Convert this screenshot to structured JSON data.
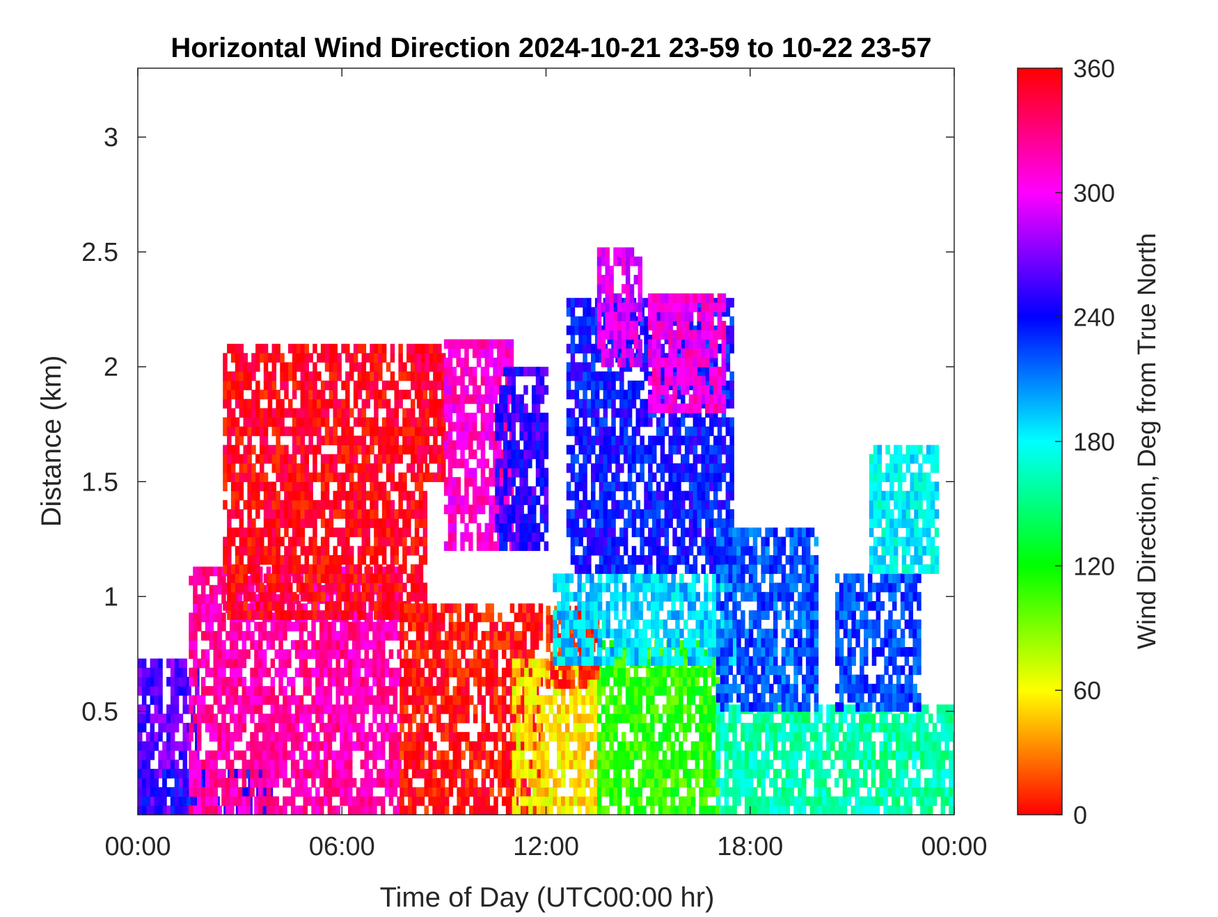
{
  "chart_data": {
    "type": "heatmap",
    "title": "Horizontal Wind Direction 2024-10-21 23-59 to 10-22 23-57",
    "xlabel": "Time of Day (UTC00:00 hr)",
    "ylabel": "Distance (km)",
    "xlim": [
      0,
      24
    ],
    "ylim": [
      0.05,
      3.3
    ],
    "x_ticks": [
      {
        "value": 0,
        "label": "00:00"
      },
      {
        "value": 6,
        "label": "06:00"
      },
      {
        "value": 12,
        "label": "12:00"
      },
      {
        "value": 18,
        "label": "18:00"
      },
      {
        "value": 24,
        "label": "00:00"
      }
    ],
    "y_ticks": [
      {
        "value": 0.5,
        "label": "0.5"
      },
      {
        "value": 1,
        "label": "1"
      },
      {
        "value": 1.5,
        "label": "1.5"
      },
      {
        "value": 2,
        "label": "2"
      },
      {
        "value": 2.5,
        "label": "2.5"
      },
      {
        "value": 3,
        "label": "3"
      }
    ],
    "colorbar": {
      "label": "Wind Direction, Deg from True North",
      "min": 0,
      "max": 360,
      "ticks": [
        {
          "value": 0,
          "label": "0"
        },
        {
          "value": 60,
          "label": "60"
        },
        {
          "value": 120,
          "label": "120"
        },
        {
          "value": 180,
          "label": "180"
        },
        {
          "value": 240,
          "label": "240"
        },
        {
          "value": 300,
          "label": "300"
        },
        {
          "value": 360,
          "label": "360"
        }
      ],
      "colormap": "hsv-reversed (red 0 → yellow 60 → green 120 → cyan 180 → blue 240 → magenta 300 → red 360)"
    },
    "grid": false,
    "regions": [
      {
        "x_range": [
          0.0,
          1.7
        ],
        "y_range": [
          0.05,
          0.7
        ],
        "direction_deg": 262
      },
      {
        "x_range": [
          0.0,
          4.0
        ],
        "y_range": [
          0.05,
          0.25
        ],
        "direction_deg": 245
      },
      {
        "x_range": [
          1.5,
          7.7
        ],
        "y_range": [
          0.05,
          1.1
        ],
        "direction_deg": 320
      },
      {
        "x_range": [
          2.5,
          8.5
        ],
        "y_range": [
          0.9,
          2.1
        ],
        "direction_deg": 355
      },
      {
        "x_range": [
          7.7,
          11.8
        ],
        "y_range": [
          0.05,
          0.95
        ],
        "direction_deg": 2
      },
      {
        "x_range": [
          8.2,
          9.0
        ],
        "y_range": [
          1.5,
          2.1
        ],
        "direction_deg": 350
      },
      {
        "x_range": [
          9.0,
          11.0
        ],
        "y_range": [
          1.2,
          2.1
        ],
        "direction_deg": 310
      },
      {
        "x_range": [
          10.5,
          12.0
        ],
        "y_range": [
          1.2,
          2.0
        ],
        "direction_deg": 250
      },
      {
        "x_range": [
          11.0,
          13.5
        ],
        "y_range": [
          0.05,
          0.7
        ],
        "direction_deg": 55
      },
      {
        "x_range": [
          13.5,
          17.0
        ],
        "y_range": [
          0.05,
          0.8
        ],
        "direction_deg": 110
      },
      {
        "x_range": [
          12.0,
          13.5
        ],
        "y_range": [
          0.6,
          0.95
        ],
        "direction_deg": 10
      },
      {
        "x_range": [
          12.2,
          17.5
        ],
        "y_range": [
          0.7,
          1.1
        ],
        "direction_deg": 190
      },
      {
        "x_range": [
          12.6,
          17.5
        ],
        "y_range": [
          1.1,
          2.3
        ],
        "direction_deg": 238
      },
      {
        "x_range": [
          13.5,
          14.8
        ],
        "y_range": [
          2.0,
          2.5
        ],
        "direction_deg": 295
      },
      {
        "x_range": [
          15.0,
          17.2
        ],
        "y_range": [
          1.8,
          2.3
        ],
        "direction_deg": 305
      },
      {
        "x_range": [
          17.0,
          24.0
        ],
        "y_range": [
          0.05,
          0.5
        ],
        "direction_deg": 160
      },
      {
        "x_range": [
          17.0,
          20.0
        ],
        "y_range": [
          0.5,
          1.3
        ],
        "direction_deg": 220
      },
      {
        "x_range": [
          20.5,
          23.0
        ],
        "y_range": [
          0.5,
          1.1
        ],
        "direction_deg": 225
      },
      {
        "x_range": [
          21.5,
          23.5
        ],
        "y_range": [
          1.1,
          1.65
        ],
        "direction_deg": 180
      }
    ]
  }
}
